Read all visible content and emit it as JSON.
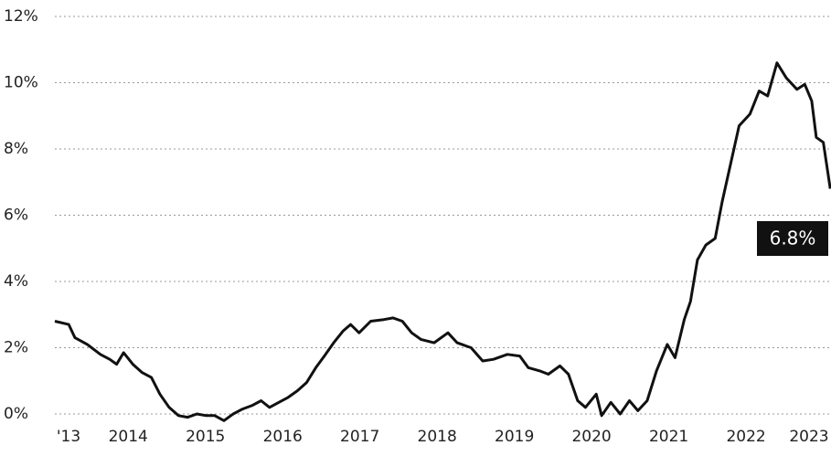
{
  "chart_data": {
    "type": "line",
    "x": [
      2013.05,
      2013.23,
      2013.31,
      2013.47,
      2013.64,
      2013.76,
      2013.85,
      2013.94,
      2014.06,
      2014.18,
      2014.3,
      2014.41,
      2014.53,
      2014.65,
      2014.77,
      2014.89,
      2015.01,
      2015.12,
      2015.24,
      2015.36,
      2015.48,
      2015.6,
      2015.72,
      2015.83,
      2015.95,
      2016.07,
      2016.19,
      2016.31,
      2016.43,
      2016.54,
      2016.66,
      2016.78,
      2016.88,
      2016.99,
      2017.14,
      2017.31,
      2017.43,
      2017.55,
      2017.67,
      2017.79,
      2017.96,
      2018.14,
      2018.26,
      2018.44,
      2018.59,
      2018.73,
      2018.91,
      2019.07,
      2019.18,
      2019.33,
      2019.44,
      2019.59,
      2019.7,
      2019.82,
      2019.92,
      2020.06,
      2020.13,
      2020.25,
      2020.37,
      2020.49,
      2020.6,
      2020.72,
      2020.84,
      2020.98,
      2021.08,
      2021.2,
      2021.28,
      2021.37,
      2021.48,
      2021.6,
      2021.69,
      2021.81,
      2021.91,
      2022.05,
      2022.17,
      2022.28,
      2022.4,
      2022.52,
      2022.66,
      2022.76,
      2022.85,
      2022.91,
      2023.0,
      2023.09
    ],
    "series": [
      {
        "color": "#111111",
        "values": [
          2.8,
          2.7,
          2.3,
          2.1,
          1.8,
          1.65,
          1.5,
          1.85,
          1.5,
          1.25,
          1.1,
          0.6,
          0.2,
          -0.05,
          -0.1,
          0.0,
          -0.05,
          -0.05,
          -0.2,
          0.0,
          0.15,
          0.25,
          0.4,
          0.2,
          0.35,
          0.5,
          0.7,
          0.95,
          1.4,
          1.75,
          2.15,
          2.5,
          2.7,
          2.45,
          2.8,
          2.85,
          2.9,
          2.8,
          2.45,
          2.25,
          2.15,
          2.45,
          2.15,
          2.0,
          1.6,
          1.65,
          1.8,
          1.75,
          1.4,
          1.3,
          1.2,
          1.45,
          1.2,
          0.4,
          0.2,
          0.6,
          -0.05,
          0.35,
          0.0,
          0.4,
          0.1,
          0.4,
          1.3,
          2.1,
          1.7,
          2.85,
          3.4,
          4.65,
          5.1,
          5.3,
          6.4,
          7.65,
          8.7,
          9.05,
          9.75,
          9.6,
          10.6,
          10.15,
          9.8,
          9.95,
          9.45,
          8.35,
          8.2,
          6.8
        ]
      }
    ],
    "annotation": "6.8%",
    "xlim": [
      2013.05,
      2023.1
    ],
    "xticks": [
      {
        "value": 2013,
        "label": "'13"
      },
      2014,
      2015,
      2016,
      2017,
      2018,
      2019,
      2020,
      2021,
      2022,
      2023
    ],
    "ylim": [
      -0.2,
      12
    ],
    "yticks": [
      {
        "value": 0,
        "label": "0%"
      },
      {
        "value": 2,
        "label": "2%"
      },
      {
        "value": 4,
        "label": "4%"
      },
      {
        "value": 6,
        "label": "6%"
      },
      {
        "value": 8,
        "label": "8%"
      },
      {
        "value": 10,
        "label": "10%"
      },
      {
        "value": 12,
        "label": "12%"
      }
    ],
    "grid": true
  }
}
